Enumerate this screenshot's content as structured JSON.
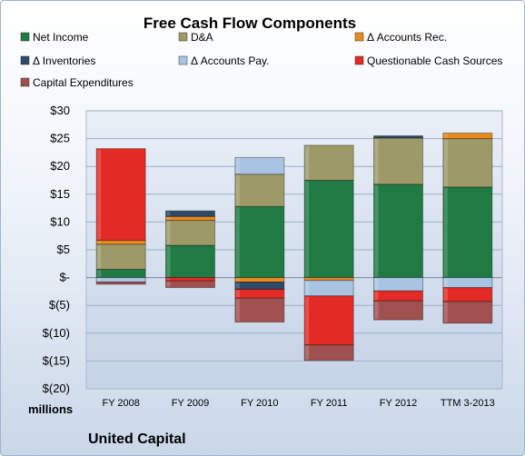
{
  "chart_data": {
    "type": "bar",
    "stacked": true,
    "title": "Free Cash Flow Components",
    "units_label": "millions",
    "company": "United Capital",
    "categories": [
      "FY 2008",
      "FY 2009",
      "FY 2010",
      "FY 2011",
      "FY 2012",
      "TTM 3-2013"
    ],
    "y_ticks": [
      "$30",
      "$25",
      "$20",
      "$15",
      "$10",
      "$5",
      "$-",
      "$(5)",
      "$(10)",
      "$(15)",
      "$(20)"
    ],
    "ylim": [
      -20,
      30
    ],
    "grid": true,
    "legend_position": "top",
    "series": [
      {
        "name": "Net Income",
        "color": "#1f7a43",
        "values": [
          1.5,
          5.8,
          12.8,
          17.5,
          16.8,
          16.3
        ]
      },
      {
        "name": "D&A",
        "color": "#9e9a68",
        "values": [
          4.5,
          4.5,
          5.8,
          6.3,
          8.3,
          8.7
        ]
      },
      {
        "name": "Δ Accounts Rec.",
        "color": "#e8891e",
        "values": [
          0.7,
          0.7,
          -0.8,
          -0.5,
          0.0,
          1.0
        ]
      },
      {
        "name": "Δ Inventories",
        "color": "#2d4a6b",
        "values": [
          0.0,
          1.0,
          -1.3,
          0.0,
          0.4,
          0.0
        ]
      },
      {
        "name": "Δ Accounts Pay.",
        "color": "#a9c3e2",
        "values": [
          -0.8,
          0.0,
          3.0,
          -2.8,
          -2.4,
          -1.8
        ]
      },
      {
        "name": "Questionable Cash Sources",
        "color": "#e42a24",
        "values": [
          16.5,
          -0.6,
          -1.6,
          -8.8,
          -1.8,
          -2.5
        ]
      },
      {
        "name": "Capital Expenditures",
        "color": "#a0504e",
        "values": [
          -0.4,
          -1.2,
          -4.3,
          -2.8,
          -3.4,
          -3.9
        ]
      }
    ]
  }
}
